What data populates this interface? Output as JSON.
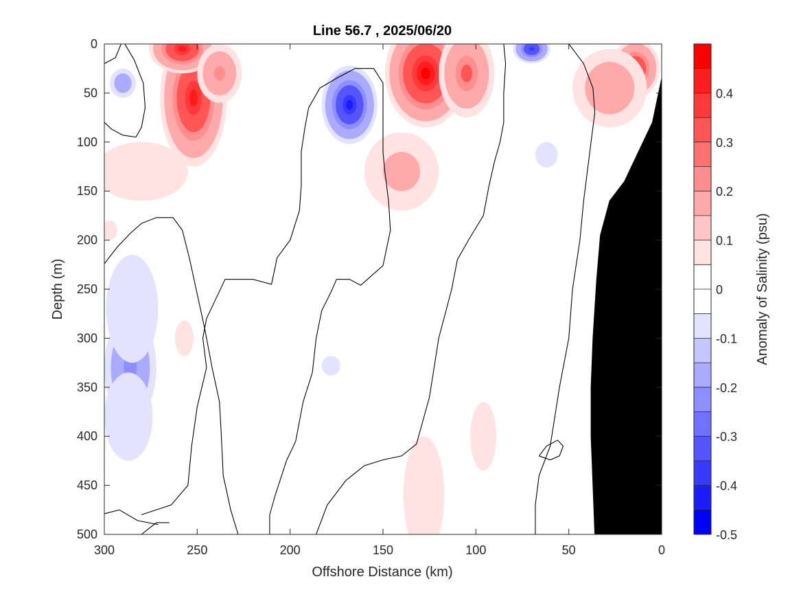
{
  "chart_data": {
    "type": "heatmap",
    "title": "Line 56.7 , 2025/06/20",
    "xlabel": "Offshore Distance (km)",
    "ylabel": "Depth (m)",
    "xlim": [
      300,
      0
    ],
    "ylim": [
      500,
      0
    ],
    "x_reversed": true,
    "y_reversed": true,
    "x_ticks": [
      "300",
      "250",
      "200",
      "150",
      "100",
      "50",
      "0"
    ],
    "x_tick_values": [
      300,
      250,
      200,
      150,
      100,
      50,
      0
    ],
    "y_ticks": [
      "0",
      "50",
      "100",
      "150",
      "200",
      "250",
      "300",
      "350",
      "400",
      "450",
      "500"
    ],
    "y_tick_values": [
      0,
      50,
      100,
      150,
      200,
      250,
      300,
      350,
      400,
      450,
      500
    ],
    "colorbar": {
      "label": "Anomaly of Salinity (psu)",
      "range": [
        -0.5,
        0.5
      ],
      "step": 0.05,
      "tick_labels": [
        "0.4",
        "0.3",
        "0.2",
        "0.1",
        "0",
        "-0.1",
        "-0.2",
        "-0.3",
        "-0.4",
        "-0.5"
      ],
      "tick_values": [
        0.4,
        0.3,
        0.2,
        0.1,
        0,
        -0.1,
        -0.2,
        -0.3,
        -0.4,
        -0.5
      ],
      "colors": {
        "positive": "#ff0000",
        "negative": "#0000ff",
        "zero": "#ffffff"
      }
    },
    "anomaly_features": [
      {
        "x": 127,
        "y": 30,
        "value": 0.5,
        "rx": 22,
        "ry": 55
      },
      {
        "x": 252,
        "y": 55,
        "value": 0.45,
        "rx": 18,
        "ry": 70
      },
      {
        "x": 258,
        "y": 5,
        "value": 0.45,
        "rx": 18,
        "ry": 25
      },
      {
        "x": 105,
        "y": 30,
        "value": 0.32,
        "rx": 15,
        "ry": 45
      },
      {
        "x": 14,
        "y": 25,
        "value": 0.42,
        "rx": 13,
        "ry": 30
      },
      {
        "x": 28,
        "y": 45,
        "value": 0.22,
        "rx": 20,
        "ry": 40
      },
      {
        "x": 238,
        "y": 30,
        "value": 0.25,
        "rx": 12,
        "ry": 30
      },
      {
        "x": 280,
        "y": 130,
        "value": 0.12,
        "rx": 25,
        "ry": 30
      },
      {
        "x": 298,
        "y": 135,
        "value": 0.12,
        "rx": 6,
        "ry": 15
      },
      {
        "x": 297,
        "y": 190,
        "value": 0.1,
        "rx": 4,
        "ry": 10
      },
      {
        "x": 140,
        "y": 130,
        "value": 0.15,
        "rx": 20,
        "ry": 40
      },
      {
        "x": 168,
        "y": 62,
        "value": -0.45,
        "rx": 15,
        "ry": 40
      },
      {
        "x": 70,
        "y": 5,
        "value": -0.4,
        "rx": 10,
        "ry": 15
      },
      {
        "x": 290,
        "y": 40,
        "value": -0.2,
        "rx": 7,
        "ry": 15
      },
      {
        "x": 62,
        "y": 113,
        "value": -0.08,
        "rx": 6,
        "ry": 13
      },
      {
        "x": 286,
        "y": 330,
        "value": -0.25,
        "rx": 14,
        "ry": 55
      },
      {
        "x": 285,
        "y": 270,
        "value": -0.12,
        "rx": 14,
        "ry": 55
      },
      {
        "x": 287,
        "y": 380,
        "value": -0.12,
        "rx": 13,
        "ry": 45
      },
      {
        "x": 178,
        "y": 328,
        "value": -0.1,
        "rx": 5,
        "ry": 10
      },
      {
        "x": 257,
        "y": 300,
        "value": 0.1,
        "rx": 5,
        "ry": 18
      },
      {
        "x": 128,
        "y": 460,
        "value": 0.1,
        "rx": 11,
        "ry": 60
      },
      {
        "x": 96,
        "y": 400,
        "value": 0.1,
        "rx": 7,
        "ry": 35
      }
    ],
    "zero_contour_lines": [
      [
        [
          300,
          20
        ],
        [
          294,
          14
        ],
        [
          291,
          0
        ]
      ],
      [
        [
          289,
          0
        ],
        [
          284,
          16
        ],
        [
          279,
          40
        ],
        [
          278,
          65
        ],
        [
          280,
          85
        ],
        [
          283,
          95
        ],
        [
          290,
          93
        ],
        [
          296,
          87
        ],
        [
          300,
          80
        ]
      ],
      [
        [
          300,
          224
        ],
        [
          293,
          207
        ],
        [
          286,
          193
        ],
        [
          280,
          183
        ],
        [
          272,
          177
        ],
        [
          263,
          177
        ],
        [
          258,
          190
        ],
        [
          254,
          220
        ],
        [
          250,
          255
        ],
        [
          246,
          290
        ],
        [
          242,
          330
        ],
        [
          238,
          365
        ],
        [
          237,
          400
        ],
        [
          236,
          440
        ],
        [
          232,
          475
        ],
        [
          228,
          500
        ]
      ],
      [
        [
          300,
          479
        ],
        [
          292,
          475
        ],
        [
          282,
          486
        ],
        [
          271,
          490
        ]
      ],
      [
        [
          280,
          500
        ],
        [
          276,
          494
        ],
        [
          272,
          488
        ],
        [
          265,
          488
        ]
      ],
      [
        [
          211,
          500
        ],
        [
          211,
          480
        ],
        [
          208,
          460
        ],
        [
          202,
          425
        ],
        [
          197,
          405
        ],
        [
          193,
          365
        ],
        [
          188,
          335
        ],
        [
          186,
          300
        ],
        [
          183,
          272
        ],
        [
          178,
          253
        ],
        [
          175,
          240
        ],
        [
          168,
          240
        ],
        [
          162,
          246
        ],
        [
          150,
          226
        ],
        [
          148,
          208
        ],
        [
          146,
          190
        ],
        [
          147,
          160
        ],
        [
          149,
          130
        ],
        [
          150,
          110
        ],
        [
          150,
          70
        ],
        [
          150,
          40
        ],
        [
          155,
          25
        ],
        [
          165,
          25
        ],
        [
          175,
          35
        ],
        [
          184,
          45
        ],
        [
          190,
          65
        ],
        [
          192,
          85
        ],
        [
          194,
          110
        ],
        [
          194,
          145
        ],
        [
          195,
          170
        ],
        [
          200,
          200
        ],
        [
          207,
          218
        ],
        [
          210,
          245
        ],
        [
          220,
          240
        ],
        [
          235,
          240
        ],
        [
          240,
          260
        ],
        [
          245,
          280
        ],
        [
          247,
          300
        ],
        [
          245,
          330
        ],
        [
          250,
          370
        ],
        [
          253,
          410
        ],
        [
          255,
          450
        ],
        [
          264,
          470
        ],
        [
          280,
          480
        ]
      ],
      [
        [
          186,
          500
        ],
        [
          180,
          470
        ],
        [
          170,
          445
        ],
        [
          160,
          430
        ],
        [
          150,
          424
        ],
        [
          140,
          420
        ],
        [
          132,
          408
        ],
        [
          125,
          360
        ],
        [
          120,
          300
        ],
        [
          113,
          250
        ],
        [
          110,
          220
        ],
        [
          104,
          200
        ],
        [
          96,
          175
        ],
        [
          93,
          145
        ],
        [
          90,
          120
        ],
        [
          87,
          100
        ],
        [
          85,
          80
        ],
        [
          85,
          50
        ],
        [
          84,
          20
        ],
        [
          85,
          0
        ]
      ],
      [
        [
          68,
          500
        ],
        [
          68,
          470
        ],
        [
          66,
          440
        ],
        [
          60,
          410
        ],
        [
          55,
          350
        ],
        [
          50,
          300
        ],
        [
          48,
          250
        ],
        [
          44,
          200
        ],
        [
          42,
          160
        ],
        [
          38,
          100
        ],
        [
          36,
          70
        ],
        [
          37,
          45
        ],
        [
          42,
          20
        ],
        [
          48,
          5
        ],
        [
          50,
          0
        ]
      ],
      [
        [
          66,
          420
        ],
        [
          60,
          424
        ],
        [
          55,
          420
        ],
        [
          53,
          410
        ],
        [
          56,
          404
        ],
        [
          62,
          410
        ],
        [
          66,
          420
        ]
      ],
      [
        [
          33,
          500
        ],
        [
          32,
          480
        ],
        [
          32,
          450
        ],
        [
          31,
          420
        ],
        [
          30,
          400
        ]
      ]
    ],
    "bathymetry": [
      [
        0,
        35
      ],
      [
        5,
        80
      ],
      [
        10,
        100
      ],
      [
        20,
        140
      ],
      [
        28,
        160
      ],
      [
        33,
        195
      ],
      [
        35,
        240
      ],
      [
        37,
        300
      ],
      [
        38,
        350
      ],
      [
        38,
        400
      ],
      [
        37,
        450
      ],
      [
        36,
        500
      ],
      [
        0,
        500
      ]
    ]
  }
}
